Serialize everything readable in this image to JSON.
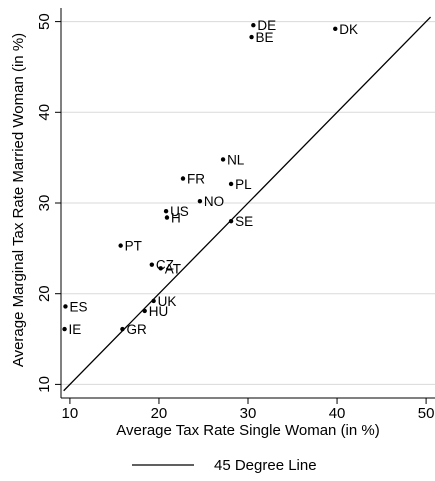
{
  "chart_data": {
    "type": "scatter",
    "title": "",
    "xlabel": "Average Tax Rate Single Woman (in %)",
    "ylabel": "Average Marginal Tax Rate Married Woman (in %)",
    "xlim": [
      9,
      51
    ],
    "ylim": [
      8.5,
      51.5
    ],
    "xticks": [
      "10",
      "20",
      "30",
      "40",
      "50"
    ],
    "yticks": [
      "10",
      "20",
      "30",
      "40",
      "50"
    ],
    "grid": "horizontal",
    "legend_placement": "bottom",
    "legend": [
      "45 Degree Line"
    ],
    "reference_line": {
      "name": "45 Degree Line",
      "from": [
        9.3,
        9.3
      ],
      "to": [
        50.5,
        50.5
      ]
    },
    "points": [
      {
        "label": "DE",
        "x": 30.6,
        "y": 49.6
      },
      {
        "label": "BE",
        "x": 30.4,
        "y": 48.3
      },
      {
        "label": "DK",
        "x": 39.8,
        "y": 49.2
      },
      {
        "label": "NL",
        "x": 27.2,
        "y": 34.8
      },
      {
        "label": "FR",
        "x": 22.7,
        "y": 32.7
      },
      {
        "label": "PL",
        "x": 28.1,
        "y": 32.1
      },
      {
        "label": "NO",
        "x": 24.6,
        "y": 30.2
      },
      {
        "label": "US",
        "x": 20.8,
        "y": 29.1
      },
      {
        "label": "H",
        "x": 20.9,
        "y": 28.4
      },
      {
        "label": "SE",
        "x": 28.1,
        "y": 28.0
      },
      {
        "label": "PT",
        "x": 15.7,
        "y": 25.3
      },
      {
        "label": "CZ",
        "x": 19.2,
        "y": 23.2
      },
      {
        "label": "AT",
        "x": 20.2,
        "y": 22.8
      },
      {
        "label": "ES",
        "x": 9.5,
        "y": 18.6
      },
      {
        "label": "UK",
        "x": 19.4,
        "y": 19.2
      },
      {
        "label": "HU",
        "x": 18.4,
        "y": 18.1
      },
      {
        "label": "IE",
        "x": 9.4,
        "y": 16.1
      },
      {
        "label": "GR",
        "x": 15.9,
        "y": 16.1
      }
    ],
    "colors": {
      "marker": "#000000",
      "line": "#000000",
      "grid": "#dadada",
      "frame": "#000000"
    }
  }
}
